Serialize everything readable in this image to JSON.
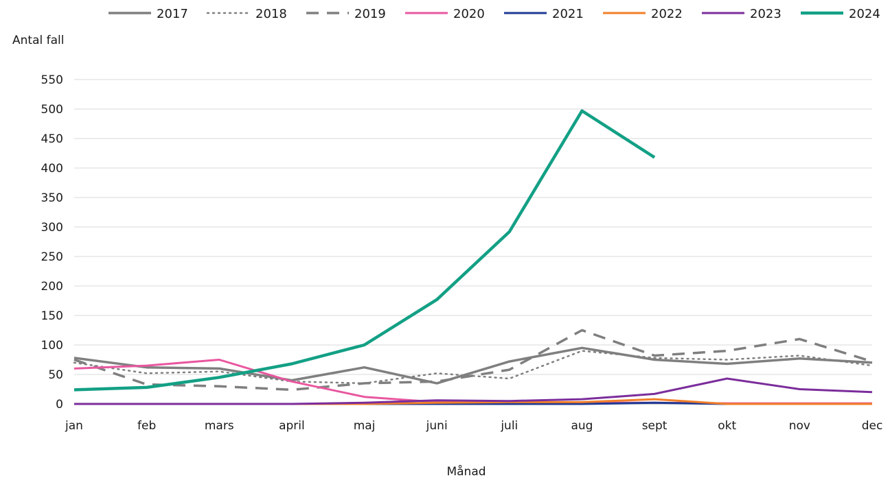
{
  "chart_data": {
    "type": "line",
    "xlabel": "Månad",
    "ylabel": "Antal fall",
    "categories": [
      "jan",
      "feb",
      "mars",
      "april",
      "maj",
      "juni",
      "juli",
      "aug",
      "sept",
      "okt",
      "nov",
      "dec"
    ],
    "ylim": [
      0,
      550
    ],
    "yticks": [
      0,
      50,
      100,
      150,
      200,
      250,
      300,
      350,
      400,
      450,
      500,
      550
    ],
    "grid": true,
    "legend_position": "top",
    "series": [
      {
        "name": "2017",
        "color": "#7f7f7f",
        "dash": "solid",
        "width": 3.5,
        "values": [
          78,
          62,
          60,
          40,
          62,
          35,
          72,
          95,
          75,
          68,
          77,
          70
        ]
      },
      {
        "name": "2018",
        "color": "#7f7f7f",
        "dash": "dotted",
        "width": 2.5,
        "values": [
          70,
          52,
          55,
          38,
          35,
          52,
          43,
          90,
          78,
          75,
          82,
          65
        ]
      },
      {
        "name": "2019",
        "color": "#7f7f7f",
        "dash": "dashed",
        "width": 3.5,
        "values": [
          75,
          33,
          30,
          24,
          35,
          38,
          58,
          125,
          82,
          90,
          110,
          72
        ]
      },
      {
        "name": "2020",
        "color": "#e8579f",
        "dash": "solid",
        "width": 3,
        "values": [
          60,
          65,
          75,
          38,
          12,
          3,
          2,
          2,
          2,
          1,
          1,
          1
        ]
      },
      {
        "name": "2021",
        "color": "#1f3a93",
        "dash": "solid",
        "width": 3,
        "values": [
          0,
          0,
          0,
          0,
          0,
          0,
          0,
          0,
          2,
          0,
          0,
          0
        ]
      },
      {
        "name": "2022",
        "color": "#f07f2a",
        "dash": "solid",
        "width": 3,
        "values": [
          0,
          0,
          0,
          0,
          0,
          2,
          3,
          3,
          8,
          0,
          0,
          0
        ]
      },
      {
        "name": "2023",
        "color": "#7b2d9b",
        "dash": "solid",
        "width": 3,
        "values": [
          0,
          0,
          0,
          0,
          2,
          6,
          5,
          8,
          17,
          43,
          25,
          20
        ]
      },
      {
        "name": "2024",
        "color": "#13a085",
        "dash": "solid",
        "width": 4.5,
        "values": [
          24,
          28,
          45,
          68,
          100,
          177,
          292,
          497,
          418,
          null,
          null,
          null
        ]
      }
    ]
  }
}
